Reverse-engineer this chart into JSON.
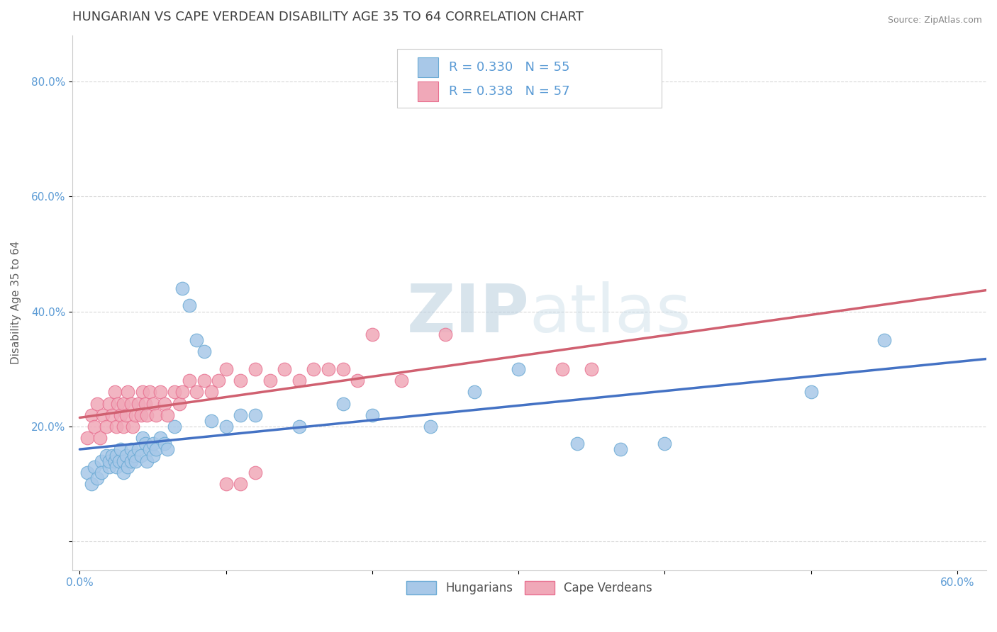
{
  "title": "HUNGARIAN VS CAPE VERDEAN DISABILITY AGE 35 TO 64 CORRELATION CHART",
  "source": "Source: ZipAtlas.com",
  "ylabel": "Disability Age 35 to 64",
  "xlim": [
    -0.005,
    0.62
  ],
  "ylim": [
    -0.05,
    0.88
  ],
  "xtick_positions": [
    0.0,
    0.1,
    0.2,
    0.3,
    0.4,
    0.5,
    0.6
  ],
  "xticklabels": [
    "0.0%",
    "",
    "",
    "",
    "",
    "",
    "60.0%"
  ],
  "ytick_positions": [
    0.0,
    0.2,
    0.4,
    0.6,
    0.8
  ],
  "yticklabels": [
    "",
    "20.0%",
    "40.0%",
    "60.0%",
    "80.0%"
  ],
  "legend_label1": "Hungarians",
  "legend_label2": "Cape Verdeans",
  "blue_color": "#a8c8e8",
  "blue_edge_color": "#6aaad4",
  "pink_color": "#f0a8b8",
  "pink_edge_color": "#e87090",
  "blue_line_color": "#4472c4",
  "pink_line_color": "#d06070",
  "watermark": "ZIPatlas",
  "watermark_color": "#d0e4f4",
  "background_color": "#ffffff",
  "grid_color": "#d8d8d8",
  "axis_color": "#cccccc",
  "title_color": "#404040",
  "tick_color": "#5b9bd5",
  "tick_fontsize": 11,
  "title_fontsize": 13,
  "ylabel_fontsize": 11,
  "legend_fontsize": 13,
  "blue_scatter_x": [
    0.005,
    0.008,
    0.01,
    0.012,
    0.015,
    0.015,
    0.018,
    0.02,
    0.02,
    0.022,
    0.024,
    0.025,
    0.025,
    0.027,
    0.028,
    0.03,
    0.03,
    0.032,
    0.033,
    0.035,
    0.035,
    0.037,
    0.038,
    0.04,
    0.042,
    0.043,
    0.045,
    0.046,
    0.048,
    0.05,
    0.05,
    0.052,
    0.055,
    0.058,
    0.06,
    0.065,
    0.07,
    0.075,
    0.08,
    0.085,
    0.09,
    0.1,
    0.11,
    0.12,
    0.15,
    0.18,
    0.2,
    0.24,
    0.27,
    0.3,
    0.34,
    0.37,
    0.4,
    0.5,
    0.55
  ],
  "blue_scatter_y": [
    0.12,
    0.1,
    0.13,
    0.11,
    0.14,
    0.12,
    0.15,
    0.13,
    0.14,
    0.15,
    0.14,
    0.13,
    0.15,
    0.14,
    0.16,
    0.14,
    0.12,
    0.15,
    0.13,
    0.16,
    0.14,
    0.15,
    0.14,
    0.16,
    0.15,
    0.18,
    0.17,
    0.14,
    0.16,
    0.15,
    0.17,
    0.16,
    0.18,
    0.17,
    0.16,
    0.2,
    0.44,
    0.41,
    0.35,
    0.33,
    0.21,
    0.2,
    0.22,
    0.22,
    0.2,
    0.24,
    0.22,
    0.2,
    0.26,
    0.3,
    0.17,
    0.16,
    0.17,
    0.26,
    0.35
  ],
  "pink_scatter_x": [
    0.005,
    0.008,
    0.01,
    0.012,
    0.014,
    0.016,
    0.018,
    0.02,
    0.022,
    0.024,
    0.025,
    0.026,
    0.028,
    0.03,
    0.03,
    0.032,
    0.033,
    0.035,
    0.036,
    0.038,
    0.04,
    0.042,
    0.043,
    0.045,
    0.046,
    0.048,
    0.05,
    0.052,
    0.055,
    0.058,
    0.06,
    0.065,
    0.068,
    0.07,
    0.075,
    0.08,
    0.085,
    0.09,
    0.095,
    0.1,
    0.11,
    0.12,
    0.13,
    0.14,
    0.15,
    0.16,
    0.17,
    0.18,
    0.19,
    0.2,
    0.22,
    0.1,
    0.11,
    0.12,
    0.33,
    0.25,
    0.35
  ],
  "pink_scatter_y": [
    0.18,
    0.22,
    0.2,
    0.24,
    0.18,
    0.22,
    0.2,
    0.24,
    0.22,
    0.26,
    0.2,
    0.24,
    0.22,
    0.2,
    0.24,
    0.22,
    0.26,
    0.24,
    0.2,
    0.22,
    0.24,
    0.22,
    0.26,
    0.24,
    0.22,
    0.26,
    0.24,
    0.22,
    0.26,
    0.24,
    0.22,
    0.26,
    0.24,
    0.26,
    0.28,
    0.26,
    0.28,
    0.26,
    0.28,
    0.3,
    0.28,
    0.3,
    0.28,
    0.3,
    0.28,
    0.3,
    0.3,
    0.3,
    0.28,
    0.36,
    0.28,
    0.1,
    0.1,
    0.12,
    0.3,
    0.36,
    0.3
  ]
}
